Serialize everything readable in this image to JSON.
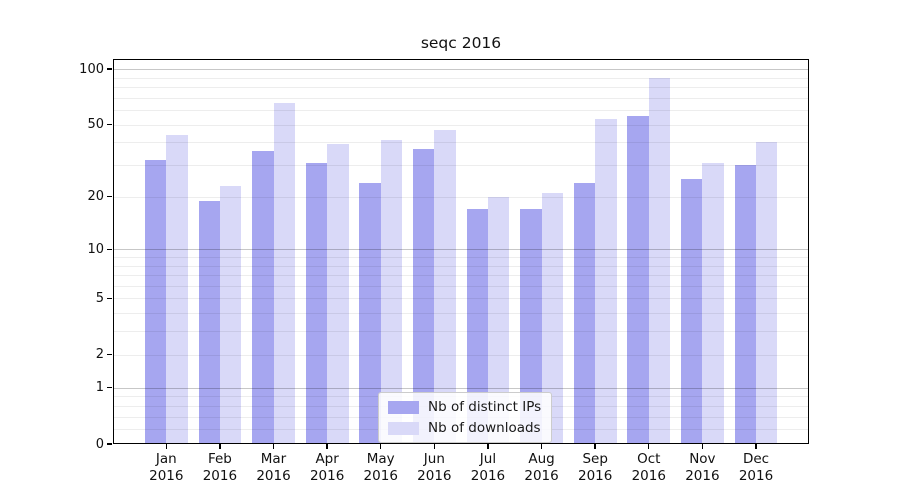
{
  "title": "seqc 2016",
  "chart_data": {
    "type": "bar",
    "title": "seqc 2016",
    "categories": [
      "Jan 2016",
      "Feb 2016",
      "Mar 2016",
      "Apr 2016",
      "May 2016",
      "Jun 2016",
      "Jul 2016",
      "Aug 2016",
      "Sep 2016",
      "Oct 2016",
      "Nov 2016",
      "Dec 2016"
    ],
    "months": [
      "Jan",
      "Feb",
      "Mar",
      "Apr",
      "May",
      "Jun",
      "Jul",
      "Aug",
      "Sep",
      "Oct",
      "Nov",
      "Dec"
    ],
    "year_label": "2016",
    "series": [
      {
        "name": "Nb of distinct IPs",
        "color": "#a6a6f0",
        "values": [
          32,
          19,
          36,
          31,
          24,
          37,
          17,
          17,
          24,
          56,
          25,
          30
        ]
      },
      {
        "name": "Nb of downloads",
        "color": "#d9d9f8",
        "values": [
          44,
          23,
          66,
          39,
          41,
          47,
          20,
          21,
          54,
          90,
          31,
          40
        ]
      }
    ],
    "xlabel": "",
    "ylabel": "",
    "yscale": "symlog",
    "ylim": [
      0,
      113.5
    ],
    "y_ticks": [
      0,
      1,
      2,
      5,
      10,
      20,
      50,
      100
    ],
    "grid_major": [
      1,
      10,
      100
    ],
    "grid_minor": [
      0.2,
      0.4,
      0.6,
      0.8,
      2,
      3,
      4,
      5,
      6,
      7,
      8,
      9,
      20,
      30,
      40,
      50,
      60,
      70,
      80,
      90
    ],
    "grid": "on",
    "legend_position": "lower center"
  },
  "colors": {
    "background": "#ffffff",
    "spine": "#000000",
    "bar_distinct_ips": "#a6a6f0",
    "bar_downloads": "#d9d9f8"
  }
}
